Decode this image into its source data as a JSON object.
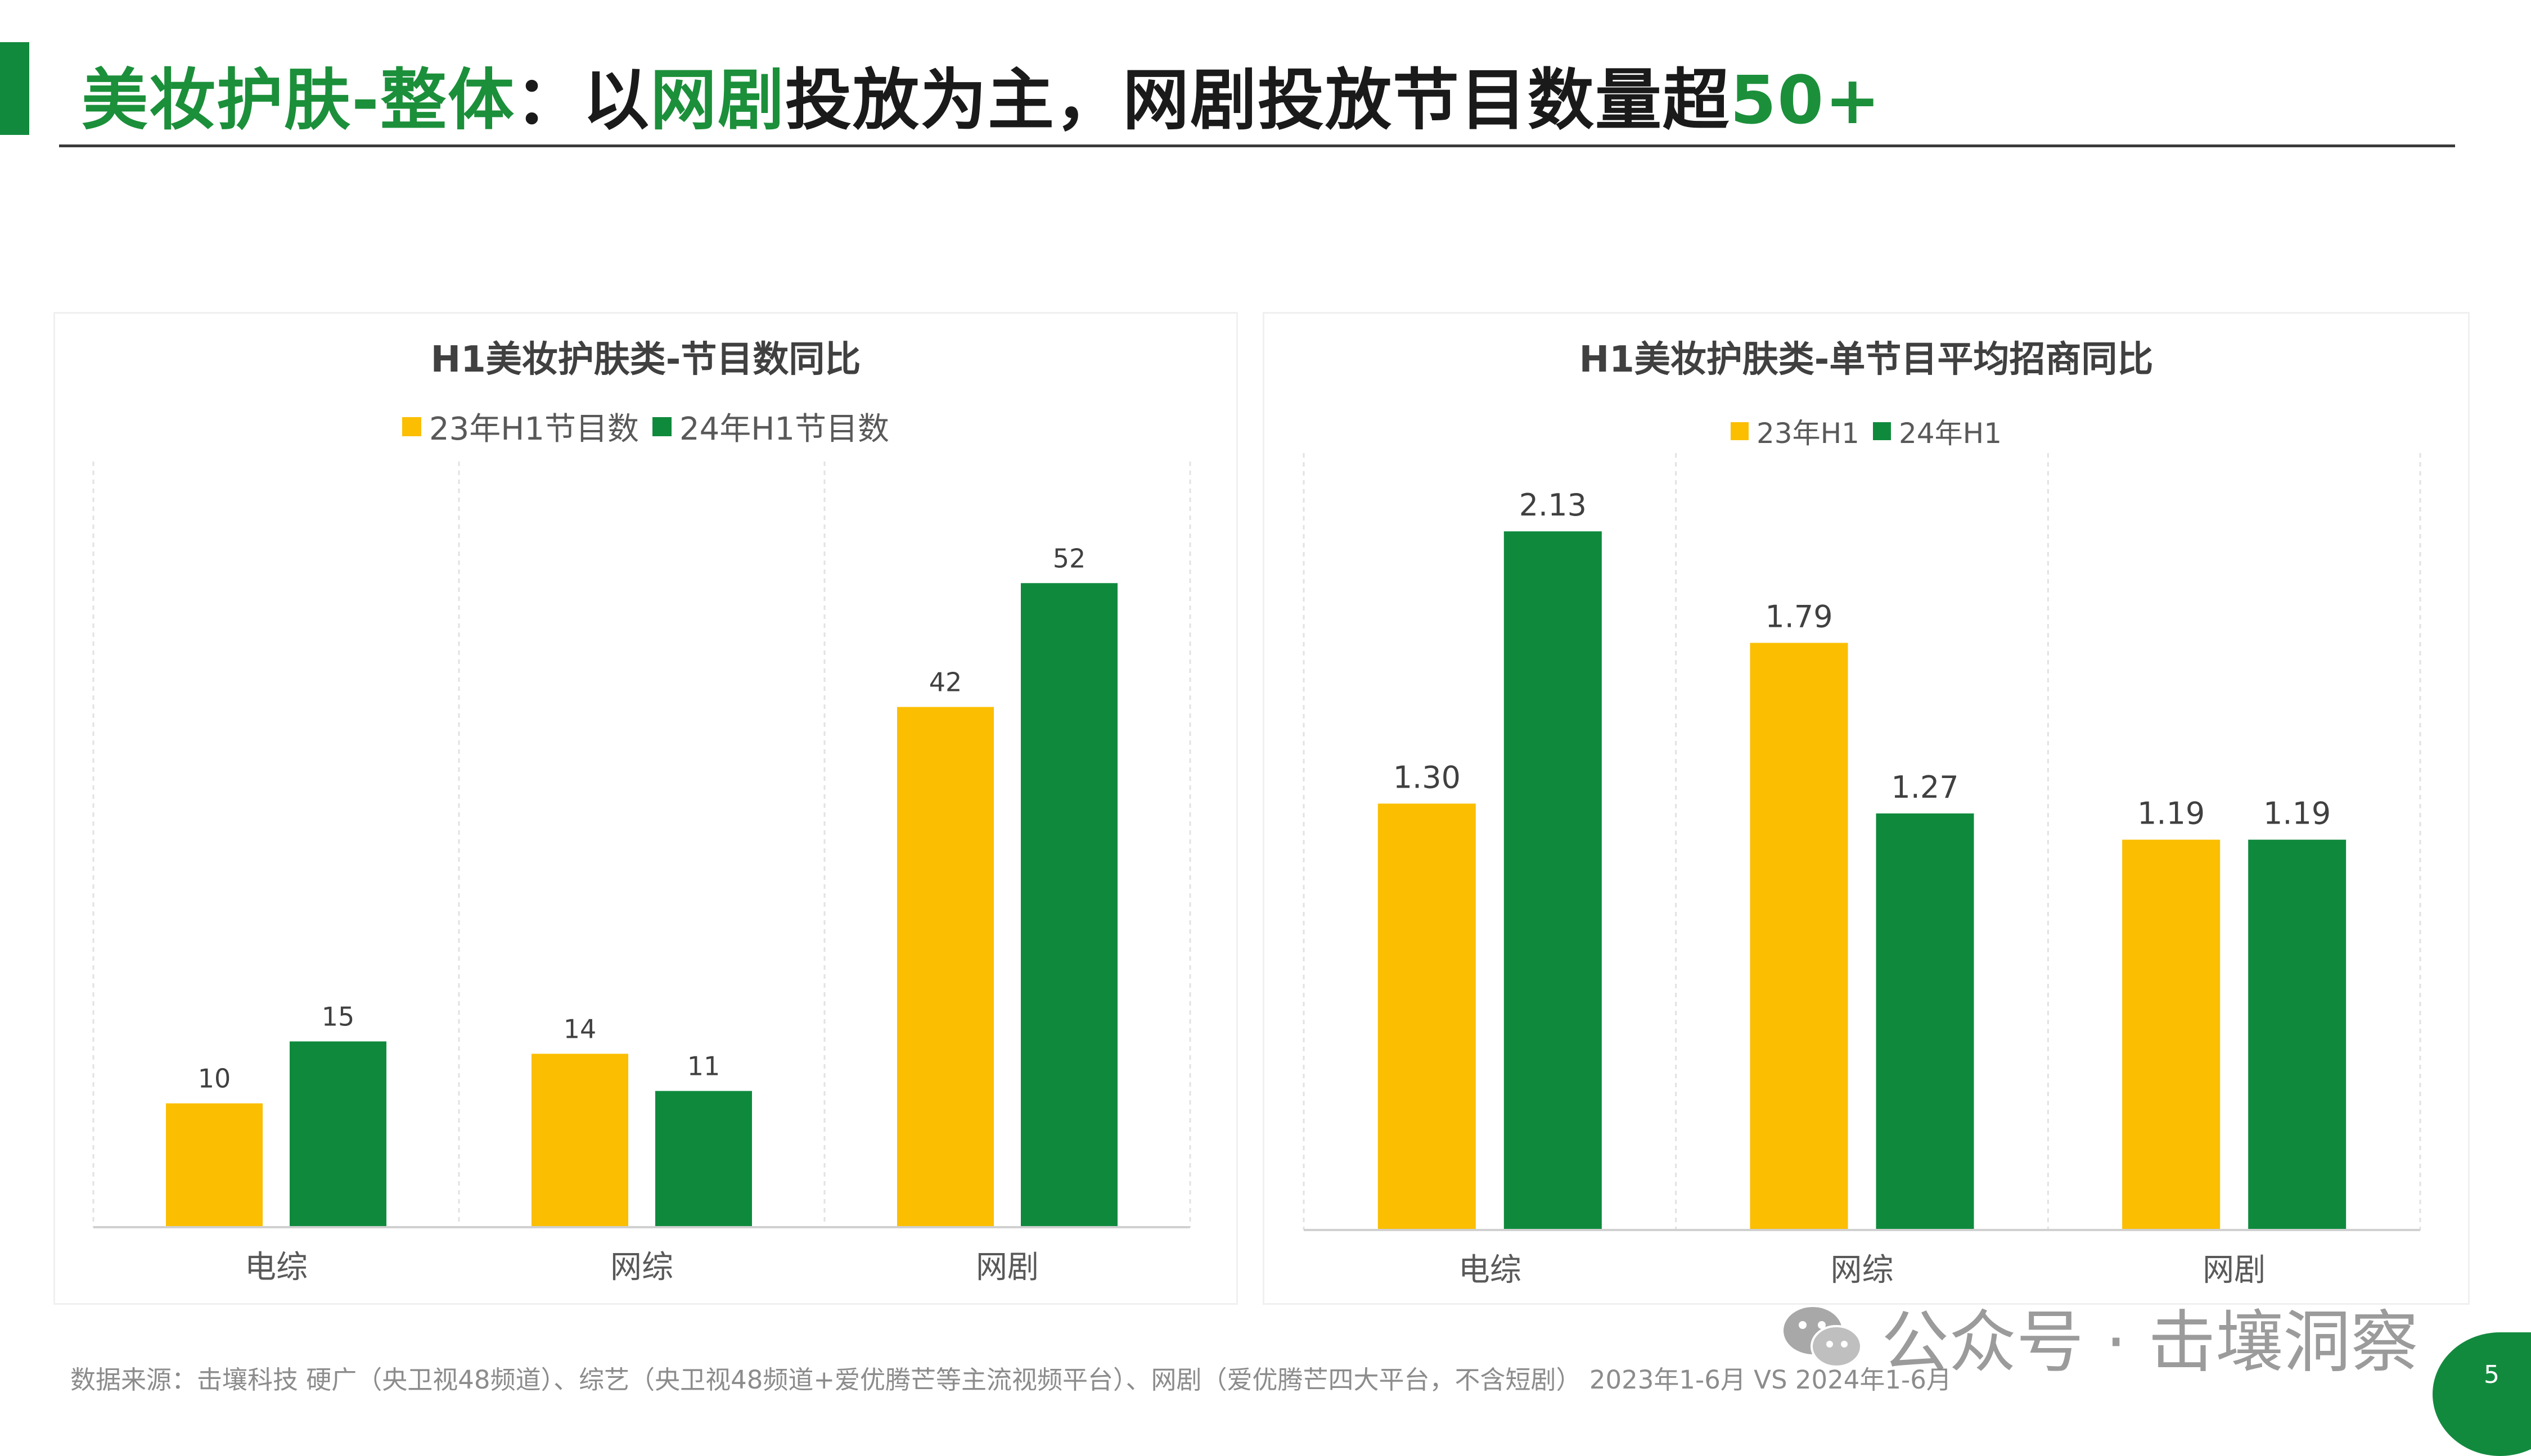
{
  "header": {
    "title_parts": [
      {
        "text": "美妆护肤-整体",
        "highlight": true
      },
      {
        "text": "：以",
        "highlight": false
      },
      {
        "text": "网剧",
        "highlight": true
      },
      {
        "text": "投放为主，网剧投放节目数量超",
        "highlight": false
      },
      {
        "text": "50+",
        "highlight": true
      }
    ]
  },
  "colors": {
    "accent_green": "#128a3e",
    "series_23": "#fbbe00",
    "series_24": "#0f8a3d",
    "title_highlight": "#1b8f3a"
  },
  "chart_data": [
    {
      "type": "bar",
      "title": "H1美妆护肤类-节目数同比",
      "categories": [
        "电综",
        "网综",
        "网剧"
      ],
      "series": [
        {
          "name": "23年H1节目数",
          "values": [
            10,
            14,
            42
          ],
          "labels": [
            "10",
            "14",
            "42"
          ]
        },
        {
          "name": "24年H1节目数",
          "values": [
            15,
            11,
            52
          ],
          "labels": [
            "15",
            "11",
            "52"
          ]
        }
      ],
      "ylim": [
        0,
        60
      ],
      "grid": false,
      "legend_position": "top"
    },
    {
      "type": "bar",
      "title": "H1美妆护肤类-单节目平均招商同比",
      "categories": [
        "电综",
        "网综",
        "网剧"
      ],
      "series": [
        {
          "name": "23年H1",
          "values": [
            1.3,
            1.79,
            1.19
          ],
          "labels": [
            "1.30",
            "1.79",
            "1.19"
          ]
        },
        {
          "name": "24年H1",
          "values": [
            2.13,
            1.27,
            1.19
          ],
          "labels": [
            "2.13",
            "1.27",
            "1.19"
          ]
        }
      ],
      "ylim": [
        0,
        2.3
      ],
      "grid": false,
      "legend_position": "top"
    }
  ],
  "footer": {
    "source": "数据来源：击壤科技 硬广（央卫视48频道）、综艺（央卫视48频道+爱优腾芒等主流视频平台）、网剧（爱优腾芒四大平台，不含短剧） 2023年1-6月 VS 2024年1-6月",
    "watermark": "公众号 · 击壤洞察",
    "page_number": "5",
    "watermark_icon": "wechat-icon"
  }
}
